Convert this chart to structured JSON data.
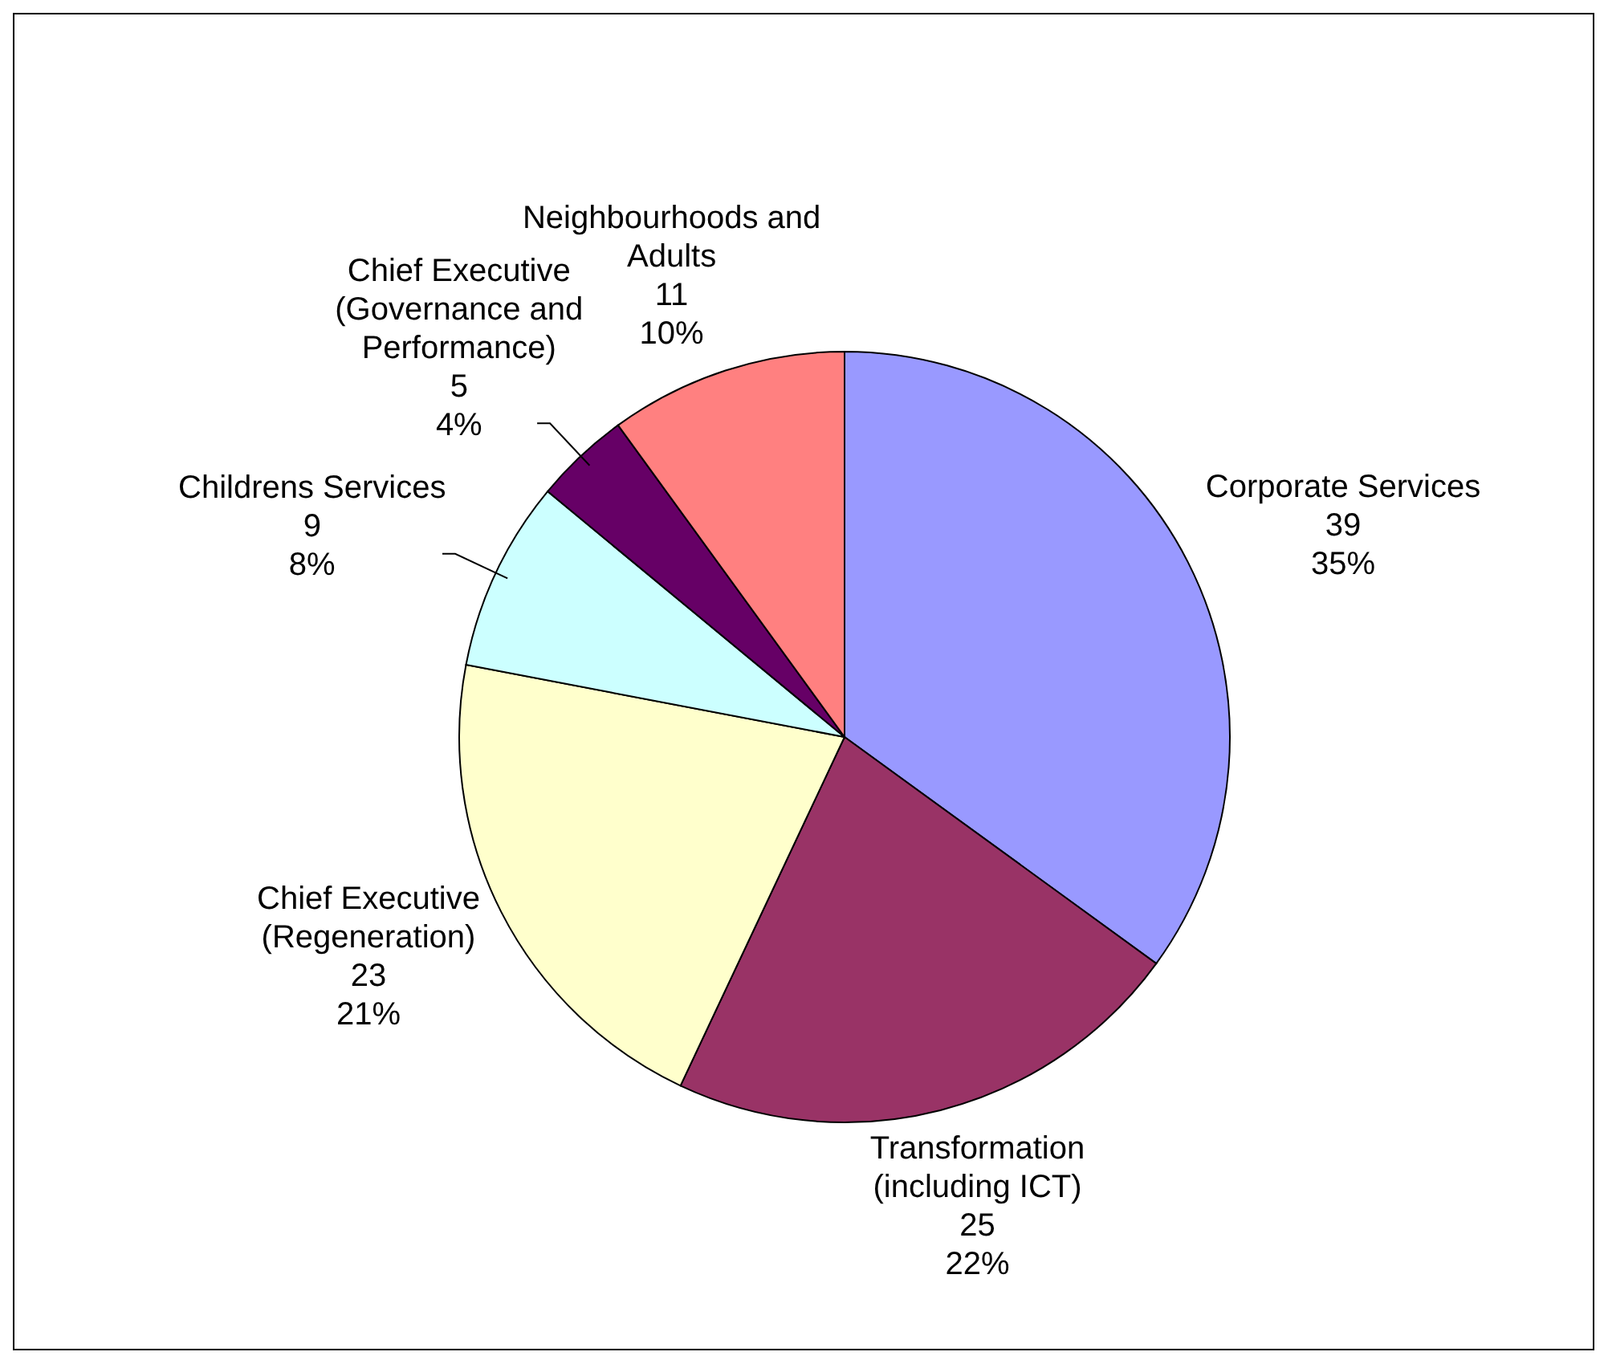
{
  "chart_data": {
    "type": "pie",
    "categories": [
      "Corporate Services",
      "Transformation (including ICT)",
      "Chief Executive (Regeneration)",
      "Childrens Services",
      "Chief Executive (Governance and Performance)",
      "Neighbourhoods and Adults"
    ],
    "values": [
      35,
      22,
      21,
      8,
      4,
      10
    ],
    "colors": [
      "#9999ff",
      "#993366",
      "#ffffcc",
      "#ccffff",
      "#660066",
      "#ff8080"
    ],
    "value_labels": [
      "39\n35%",
      "25\n22%",
      "23\n21%",
      "9\n8%",
      "5\n4%",
      "11\n10%"
    ],
    "legend": false
  }
}
